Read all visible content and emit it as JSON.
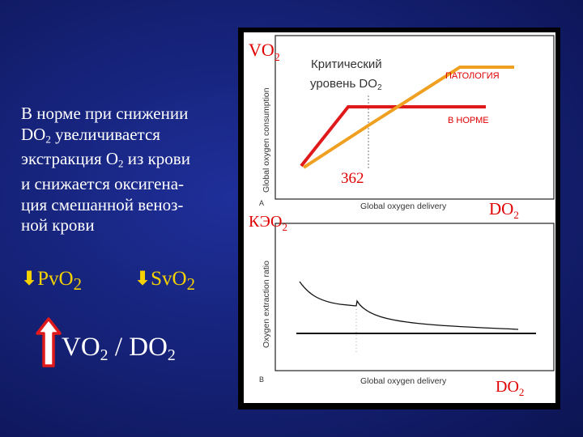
{
  "left_text": {
    "lines": [
      "В норме при снижении",
      "DO2 увеличивается",
      "экстракция O2 из крови",
      "и снижается оксигена-",
      "ция смешанной веноз-",
      "ной крови"
    ]
  },
  "markers": {
    "pvo2": "PvO2",
    "svo2": "SvO2"
  },
  "ratio_label": "VO2 / DO2",
  "panel_a": {
    "y_title": "VO2",
    "y_axis_label": "Global oxygen consumption",
    "x_axis_label": "Global oxygen delivery",
    "x_title": "DO2",
    "panel_letter": "A",
    "critical_label_line1": "Критический",
    "critical_label_line2": "уровень DO2",
    "pathology_label": "ПАТОЛОГИЯ",
    "normal_label": "В НОРМЕ",
    "critical_value": "362",
    "colors": {
      "normal": "#e01a1a",
      "pathology": "#f0a020"
    }
  },
  "panel_b": {
    "y_title": "КЭО2",
    "y_axis_label": "Oxygen extraction ratio",
    "x_axis_label": "Global oxygen delivery",
    "x_title": "DO2",
    "panel_letter": "B"
  }
}
